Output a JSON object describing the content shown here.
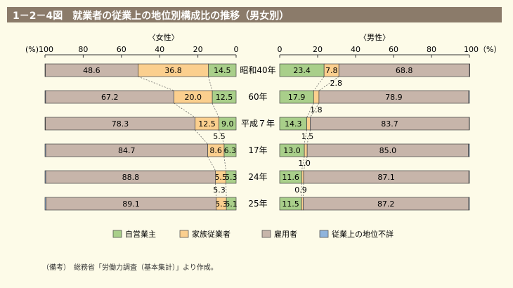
{
  "title": "1－2－4図　就業者の従業上の地位別構成比の推移（男女別）",
  "note": "（備考）　総務省「労働力調査（基本集計）」より作成。",
  "colors": {
    "self_employed": "#a9cf8a",
    "family_worker": "#fbcf8e",
    "employee": "#c7b5aa",
    "unknown": "#8fb4dc"
  },
  "chart_data": {
    "type": "bar",
    "categories": [
      "昭和40年",
      "60年",
      "平成７年",
      "17年",
      "24年",
      "25年"
    ],
    "female": {
      "title": "〈女性〉",
      "axis_ticks": [
        "(%)100",
        "80",
        "60",
        "40",
        "20",
        "0"
      ],
      "xlim": [
        100,
        0
      ],
      "series": [
        {
          "name": "自営業主",
          "values": [
            14.5,
            12.5,
            9.0,
            6.3,
            5.3,
            5.1
          ],
          "labels": [
            "14.5",
            "12.5",
            "9.0",
            "6.3",
            "5.3",
            "5.1"
          ]
        },
        {
          "name": "家族従業者",
          "values": [
            36.8,
            20.0,
            12.5,
            8.6,
            5.5,
            5.3
          ],
          "labels": [
            "36.8",
            "20.0",
            "12.5",
            "8.6",
            "5.5",
            "5.3"
          ]
        },
        {
          "name": "雇用者",
          "values": [
            48.6,
            67.2,
            78.3,
            84.7,
            88.8,
            89.1
          ],
          "labels": [
            "48.6",
            "67.2",
            "78.3",
            "84.7",
            "88.8",
            "89.1"
          ]
        },
        {
          "name": "従業上の地位不詳",
          "values": [
            0.1,
            0.3,
            0.2,
            0.4,
            0.4,
            0.5
          ],
          "labels": [
            "",
            "",
            "",
            "",
            "",
            ""
          ]
        }
      ],
      "outside_labels": [
        {
          "after": 2,
          "text": "5.5"
        },
        {
          "after": 4,
          "text": "5.3"
        }
      ]
    },
    "male": {
      "title": "〈男性〉",
      "axis_ticks": [
        "0",
        "20",
        "40",
        "60",
        "80",
        "100（%）"
      ],
      "xlim": [
        0,
        100
      ],
      "series": [
        {
          "name": "自営業主",
          "values": [
            23.4,
            17.9,
            14.3,
            13.0,
            11.6,
            11.5
          ],
          "labels": [
            "23.4",
            "17.9",
            "14.3",
            "13.0",
            "11.6",
            "11.5"
          ]
        },
        {
          "name": "家族従業者",
          "values": [
            7.8,
            2.8,
            1.8,
            1.5,
            1.0,
            0.9
          ],
          "labels": [
            "7.8",
            "",
            "",
            "",
            "",
            ""
          ]
        },
        {
          "name": "雇用者",
          "values": [
            68.8,
            78.9,
            83.7,
            85.0,
            87.1,
            87.2
          ],
          "labels": [
            "68.8",
            "78.9",
            "83.7",
            "85.0",
            "87.1",
            "87.2"
          ]
        },
        {
          "name": "従業上の地位不詳",
          "values": [
            0.0,
            0.4,
            0.2,
            0.5,
            0.3,
            0.4
          ],
          "labels": [
            "",
            "",
            "",
            "",
            "",
            ""
          ]
        }
      ],
      "outside_labels": [
        {
          "after": 0,
          "text": "2.8"
        },
        {
          "after": 1,
          "text": "1.8"
        },
        {
          "after": 2,
          "text": "1.5"
        },
        {
          "after": 3,
          "text": "1.0"
        },
        {
          "after": 4,
          "text": "0.9"
        }
      ]
    },
    "legend": [
      "自営業主",
      "家族従業者",
      "雇用者",
      "従業上の地位不詳"
    ],
    "legend_position": "bottom"
  }
}
